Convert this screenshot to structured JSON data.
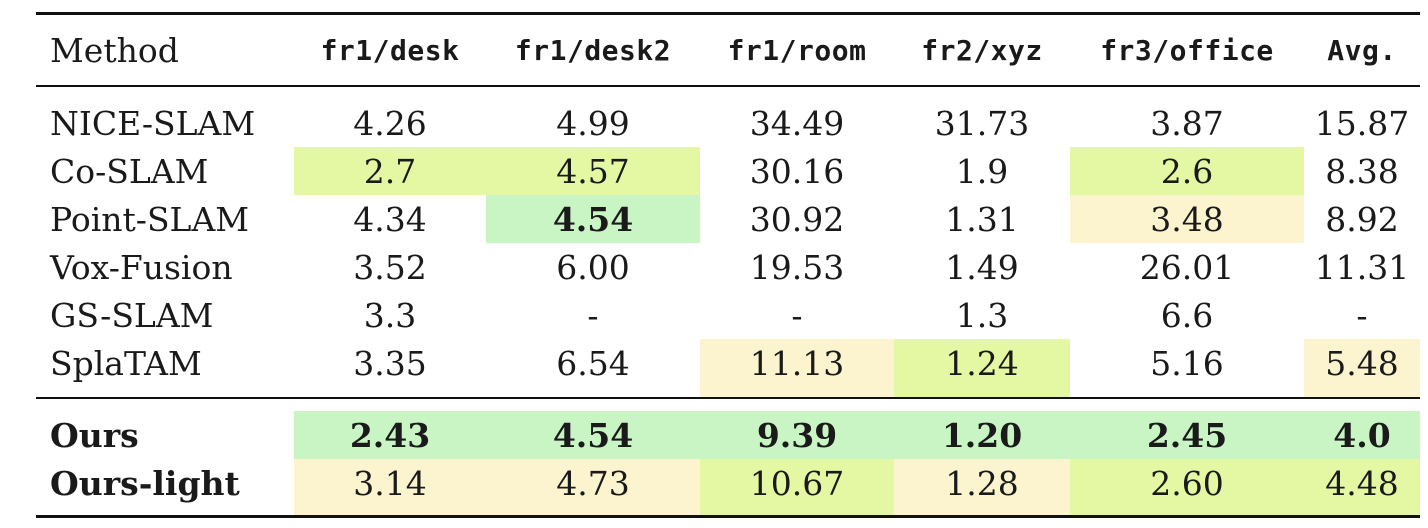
{
  "table": {
    "headers": [
      "Method",
      "fr1/desk",
      "fr1/desk2",
      "fr1/room",
      "fr2/xyz",
      "fr3/office",
      "Avg."
    ],
    "rows": [
      {
        "method": "NICE-SLAM",
        "values": [
          "4.26",
          "4.99",
          "34.49",
          "31.73",
          "3.87",
          "15.87"
        ]
      },
      {
        "method": "Co-SLAM",
        "values": [
          "2.7",
          "4.57",
          "30.16",
          "1.9",
          "2.6",
          "8.38"
        ]
      },
      {
        "method": "Point-SLAM",
        "values": [
          "4.34",
          "4.54",
          "30.92",
          "1.31",
          "3.48",
          "8.92"
        ]
      },
      {
        "method": "Vox-Fusion",
        "values": [
          "3.52",
          "6.00",
          "19.53",
          "1.49",
          "26.01",
          "11.31"
        ]
      },
      {
        "method": "GS-SLAM",
        "values": [
          "3.3",
          "-",
          "-",
          "1.3",
          "6.6",
          "-"
        ]
      },
      {
        "method": "SplaTAM",
        "values": [
          "3.35",
          "6.54",
          "11.13",
          "1.24",
          "5.16",
          "5.48"
        ]
      }
    ],
    "ours_rows": [
      {
        "method": "Ours",
        "values": [
          "2.43",
          "4.54",
          "9.39",
          "1.20",
          "2.45",
          "4.0"
        ]
      },
      {
        "method": "Ours-light",
        "values": [
          "3.14",
          "4.73",
          "10.67",
          "1.28",
          "2.60",
          "4.48"
        ]
      }
    ],
    "colors": {
      "green": "#c9f5c5",
      "lime": "#e4f7a3",
      "yellow": "#fbf4cf"
    }
  }
}
